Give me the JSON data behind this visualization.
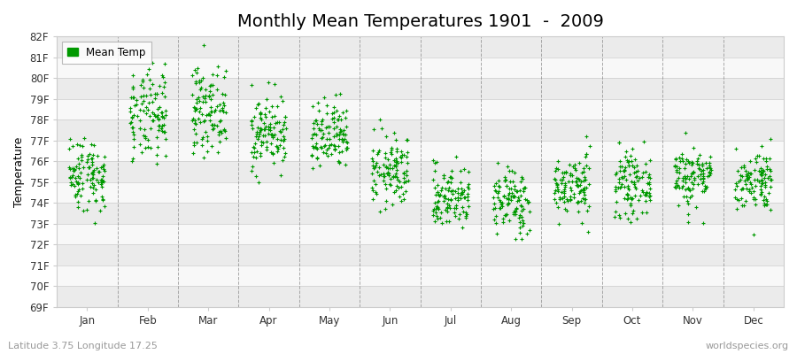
{
  "title": "Monthly Mean Temperatures 1901  -  2009",
  "ylabel": "Temperature",
  "footer_left": "Latitude 3.75 Longitude 17.25",
  "footer_right": "worldspecies.org",
  "legend_label": "Mean Temp",
  "ylim": [
    69,
    82
  ],
  "yticks": [
    69,
    70,
    71,
    72,
    73,
    74,
    75,
    76,
    77,
    78,
    79,
    80,
    81,
    82
  ],
  "ytick_labels": [
    "69F",
    "70F",
    "71F",
    "72F",
    "73F",
    "74F",
    "75F",
    "76F",
    "77F",
    "78F",
    "79F",
    "80F",
    "81F",
    "82F"
  ],
  "months": [
    "Jan",
    "Feb",
    "Mar",
    "Apr",
    "May",
    "Jun",
    "Jul",
    "Aug",
    "Sep",
    "Oct",
    "Nov",
    "Dec"
  ],
  "month_means": [
    75.4,
    78.1,
    78.5,
    77.4,
    77.1,
    75.5,
    74.3,
    74.1,
    74.8,
    74.9,
    75.3,
    75.1
  ],
  "month_stds": [
    0.9,
    1.1,
    1.0,
    0.9,
    0.85,
    0.85,
    0.75,
    0.8,
    0.75,
    0.75,
    0.75,
    0.75
  ],
  "dot_color": "#009900",
  "background_color": "#ffffff",
  "band_colors": [
    "#ebebeb",
    "#f8f8f8"
  ],
  "grid_color": "#cccccc",
  "dashed_line_color": "#888888",
  "n_years": 109,
  "seed": 42,
  "title_fontsize": 14,
  "axis_label_fontsize": 9,
  "tick_fontsize": 8.5,
  "footer_fontsize": 8,
  "dot_size": 5,
  "dot_marker": "+"
}
